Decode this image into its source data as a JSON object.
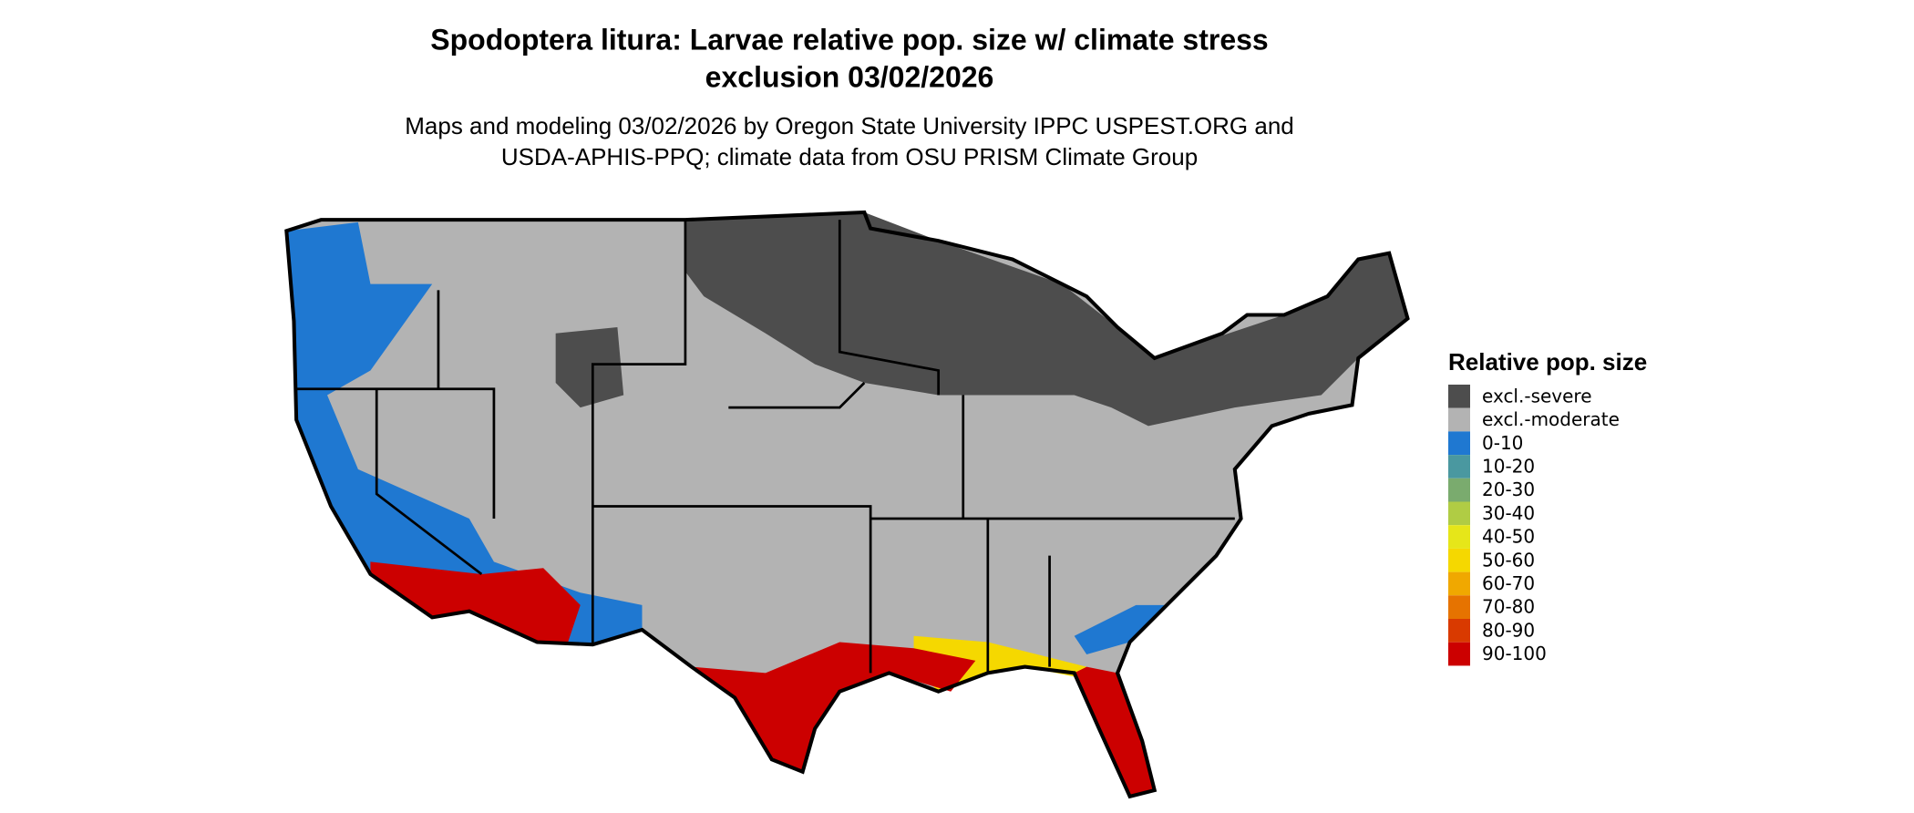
{
  "header": {
    "title_lines": [
      "Spodoptera litura: Larvae relative pop. size w/ climate stress",
      "exclusion 03/02/2026"
    ],
    "subtitle_lines": [
      "Maps and modeling 03/02/2026 by Oregon State University IPPC USPEST.ORG and",
      "USDA-APHIS-PPQ; climate data from OSU PRISM Climate Group"
    ]
  },
  "legend": {
    "title": "Relative pop. size",
    "items": [
      {
        "label": "excl.-severe",
        "color": "#4d4d4d"
      },
      {
        "label": "excl.-moderate",
        "color": "#b3b3b3"
      },
      {
        "label": "0-10",
        "color": "#1f78d1"
      },
      {
        "label": "10-20",
        "color": "#4a98a0"
      },
      {
        "label": "20-30",
        "color": "#7aab6e"
      },
      {
        "label": "30-40",
        "color": "#b0cc44"
      },
      {
        "label": "40-50",
        "color": "#e6e619"
      },
      {
        "label": "50-60",
        "color": "#f5d800"
      },
      {
        "label": "60-70",
        "color": "#f0a800"
      },
      {
        "label": "70-80",
        "color": "#e67300"
      },
      {
        "label": "80-90",
        "color": "#d93a00"
      },
      {
        "label": "90-100",
        "color": "#cc0000"
      }
    ]
  }
}
